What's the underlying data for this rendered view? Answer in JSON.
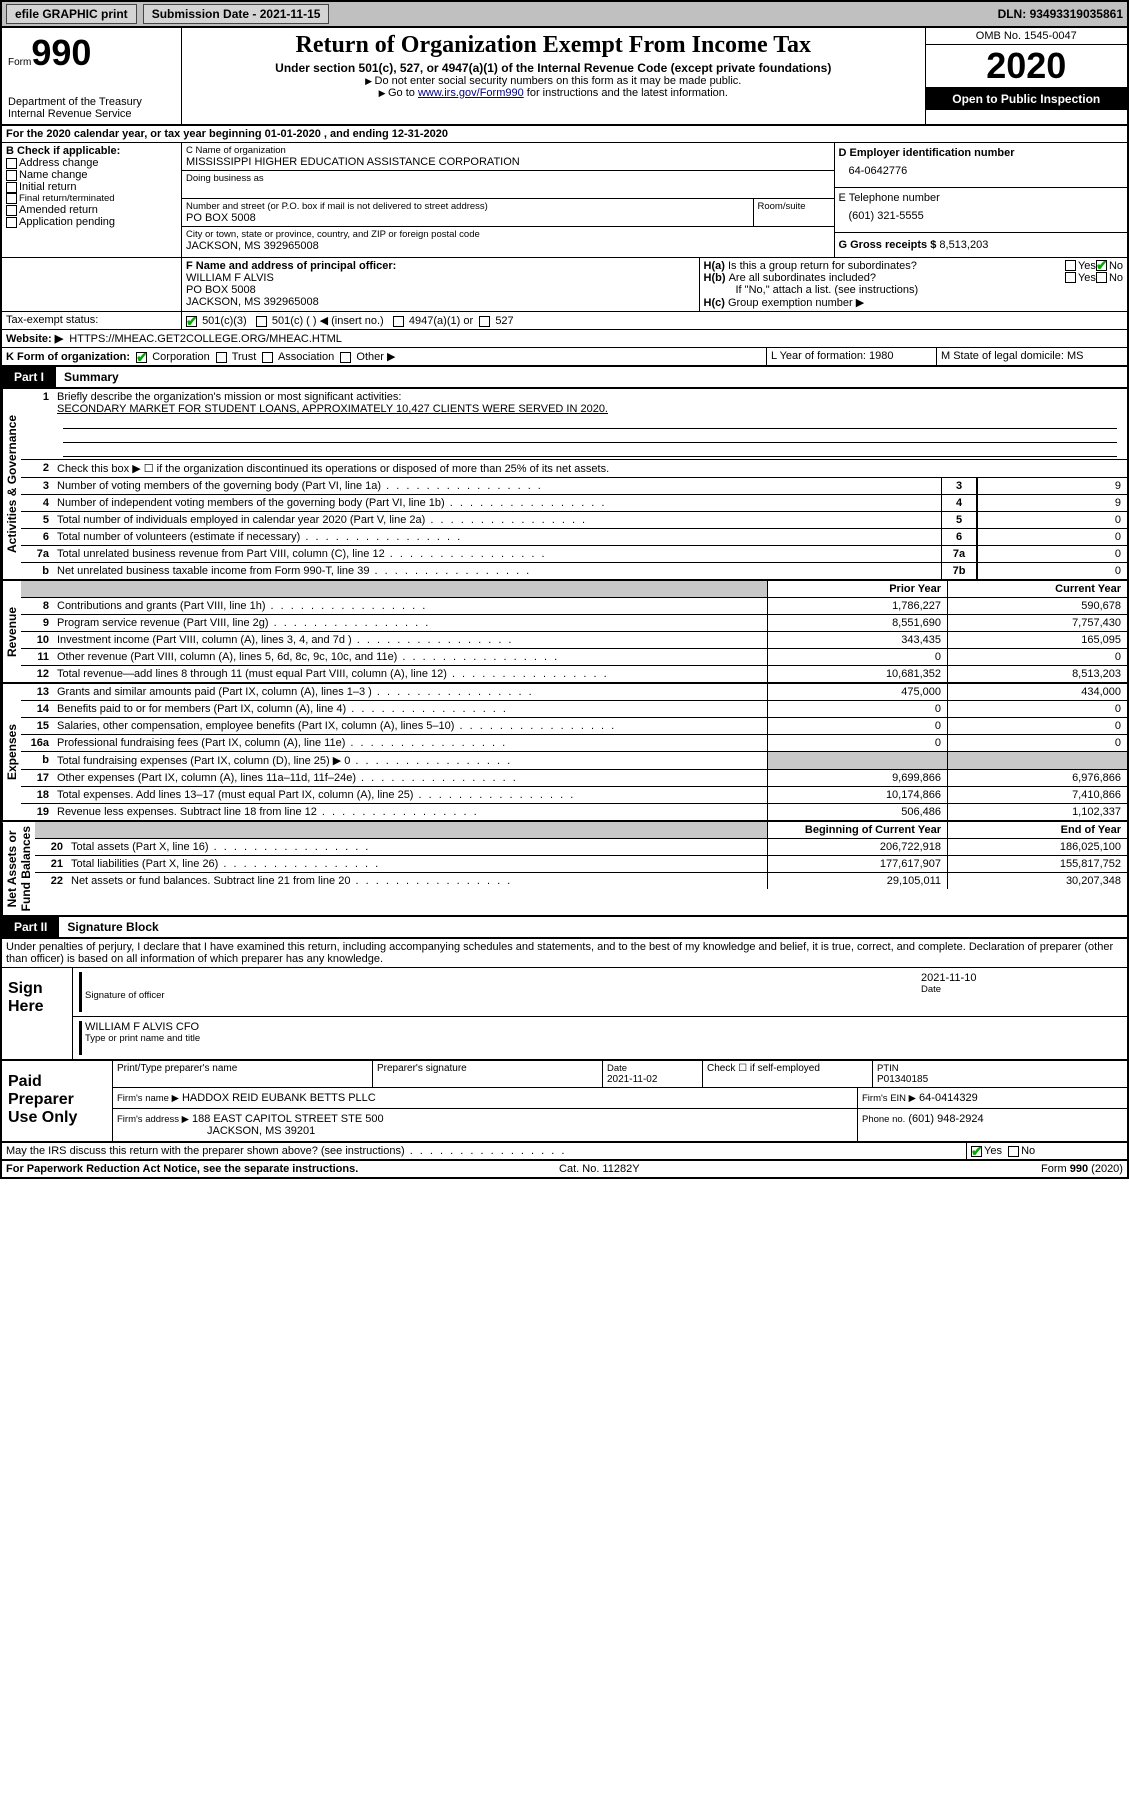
{
  "topbar": {
    "efile": "efile GRAPHIC print",
    "subdate_label": "Submission Date - ",
    "subdate": "2021-11-15",
    "dln_label": "DLN: ",
    "dln": "93493319035861"
  },
  "header": {
    "form_small": "Form",
    "form_big": "990",
    "dept": "Department of the Treasury\nInternal Revenue Service",
    "title": "Return of Organization Exempt From Income Tax",
    "sub1": "Under section 501(c), 527, or 4947(a)(1) of the Internal Revenue Code (except private foundations)",
    "sub2": "Do not enter social security numbers on this form as it may be made public.",
    "sub3_prefix": "Go to ",
    "sub3_link": "www.irs.gov/Form990",
    "sub3_suffix": " for instructions and the latest information.",
    "omb": "OMB No. 1545-0047",
    "year": "2020",
    "inspect": "Open to Public Inspection"
  },
  "lineA": "For the 2020 calendar year, or tax year beginning 01-01-2020    , and ending 12-31-2020",
  "boxB": {
    "label": "B Check if applicable:",
    "opts": [
      "Address change",
      "Name change",
      "Initial return",
      "Final return/terminated",
      "Amended return",
      "Application pending"
    ]
  },
  "boxC": {
    "label": "C Name of organization",
    "name": "MISSISSIPPI HIGHER EDUCATION ASSISTANCE CORPORATION",
    "dba_label": "Doing business as",
    "addr_label": "Number and street (or P.O. box if mail is not delivered to street address)",
    "room_label": "Room/suite",
    "addr": "PO BOX 5008",
    "city_label": "City or town, state or province, country, and ZIP or foreign postal code",
    "city": "JACKSON, MS  392965008"
  },
  "boxD": {
    "label": "D Employer identification number",
    "val": "64-0642776"
  },
  "boxE": {
    "label": "E Telephone number",
    "val": "(601) 321-5555"
  },
  "boxG": {
    "label": "G Gross receipts $",
    "val": "8,513,203"
  },
  "boxF": {
    "label": "F  Name and address of principal officer:",
    "name": "WILLIAM F ALVIS",
    "addr1": "PO BOX 5008",
    "addr2": "JACKSON, MS  392965008"
  },
  "boxH": {
    "a": "Is this a group return for subordinates?",
    "b": "Are all subordinates included?",
    "bnote": "If \"No,\" attach a list. (see instructions)",
    "c": "Group exemption number ▶"
  },
  "lineI": {
    "label": "Tax-exempt status:",
    "opts": [
      "501(c)(3)",
      "501(c) (   ) ◀ (insert no.)",
      "4947(a)(1) or",
      "527"
    ]
  },
  "lineJ": {
    "label": "Website: ▶",
    "val": "HTTPS://MHEAC.GET2COLLEGE.ORG/MHEAC.HTML"
  },
  "lineK": {
    "label": "K Form of organization:",
    "opts": [
      "Corporation",
      "Trust",
      "Association",
      "Other ▶"
    ],
    "L": "L Year of formation: 1980",
    "M": "M State of legal domicile: MS"
  },
  "part1": {
    "num": "Part I",
    "title": "Summary"
  },
  "gov": {
    "sidelabel": "Activities & Governance",
    "q1": "Briefly describe the organization's mission or most significant activities:",
    "q1ans": "SECONDARY MARKET FOR STUDENT LOANS, APPROXIMATELY 10,427 CLIENTS WERE SERVED IN 2020.",
    "q2": "Check this box ▶ ☐  if the organization discontinued its operations or disposed of more than 25% of its net assets.",
    "rows": [
      {
        "n": "3",
        "d": "Number of voting members of the governing body (Part VI, line 1a)",
        "b": "3",
        "v": "9"
      },
      {
        "n": "4",
        "d": "Number of independent voting members of the governing body (Part VI, line 1b)",
        "b": "4",
        "v": "9"
      },
      {
        "n": "5",
        "d": "Total number of individuals employed in calendar year 2020 (Part V, line 2a)",
        "b": "5",
        "v": "0"
      },
      {
        "n": "6",
        "d": "Total number of volunteers (estimate if necessary)",
        "b": "6",
        "v": "0"
      },
      {
        "n": "7a",
        "d": "Total unrelated business revenue from Part VIII, column (C), line 12",
        "b": "7a",
        "v": "0"
      },
      {
        "n": "b",
        "d": "Net unrelated business taxable income from Form 990-T, line 39",
        "b": "7b",
        "v": "0"
      }
    ]
  },
  "twocol": {
    "head_prior": "Prior Year",
    "head_curr": "Current Year",
    "rev_label": "Revenue",
    "rev": [
      {
        "n": "8",
        "d": "Contributions and grants (Part VIII, line 1h)",
        "p": "1,786,227",
        "c": "590,678"
      },
      {
        "n": "9",
        "d": "Program service revenue (Part VIII, line 2g)",
        "p": "8,551,690",
        "c": "7,757,430"
      },
      {
        "n": "10",
        "d": "Investment income (Part VIII, column (A), lines 3, 4, and 7d )",
        "p": "343,435",
        "c": "165,095"
      },
      {
        "n": "11",
        "d": "Other revenue (Part VIII, column (A), lines 5, 6d, 8c, 9c, 10c, and 11e)",
        "p": "0",
        "c": "0"
      },
      {
        "n": "12",
        "d": "Total revenue—add lines 8 through 11 (must equal Part VIII, column (A), line 12)",
        "p": "10,681,352",
        "c": "8,513,203"
      }
    ],
    "exp_label": "Expenses",
    "exp": [
      {
        "n": "13",
        "d": "Grants and similar amounts paid (Part IX, column (A), lines 1–3 )",
        "p": "475,000",
        "c": "434,000"
      },
      {
        "n": "14",
        "d": "Benefits paid to or for members (Part IX, column (A), line 4)",
        "p": "0",
        "c": "0"
      },
      {
        "n": "15",
        "d": "Salaries, other compensation, employee benefits (Part IX, column (A), lines 5–10)",
        "p": "0",
        "c": "0"
      },
      {
        "n": "16a",
        "d": "Professional fundraising fees (Part IX, column (A), line 11e)",
        "p": "0",
        "c": "0"
      },
      {
        "n": "b",
        "d": "Total fundraising expenses (Part IX, column (D), line 25) ▶ 0",
        "p": "",
        "c": "",
        "shade": true
      },
      {
        "n": "17",
        "d": "Other expenses (Part IX, column (A), lines 11a–11d, 11f–24e)",
        "p": "9,699,866",
        "c": "6,976,866"
      },
      {
        "n": "18",
        "d": "Total expenses. Add lines 13–17 (must equal Part IX, column (A), line 25)",
        "p": "10,174,866",
        "c": "7,410,866"
      },
      {
        "n": "19",
        "d": "Revenue less expenses. Subtract line 18 from line 12",
        "p": "506,486",
        "c": "1,102,337"
      }
    ],
    "na_label": "Net Assets or\nFund Balances",
    "na_head_b": "Beginning of Current Year",
    "na_head_e": "End of Year",
    "na": [
      {
        "n": "20",
        "d": "Total assets (Part X, line 16)",
        "p": "206,722,918",
        "c": "186,025,100"
      },
      {
        "n": "21",
        "d": "Total liabilities (Part X, line 26)",
        "p": "177,617,907",
        "c": "155,817,752"
      },
      {
        "n": "22",
        "d": "Net assets or fund balances. Subtract line 21 from line 20",
        "p": "29,105,011",
        "c": "30,207,348"
      }
    ]
  },
  "part2": {
    "num": "Part II",
    "title": "Signature Block"
  },
  "perjury": "Under penalties of perjury, I declare that I have examined this return, including accompanying schedules and statements, and to the best of my knowledge and belief, it is true, correct, and complete. Declaration of preparer (other than officer) is based on all information of which preparer has any knowledge.",
  "sign": {
    "left": "Sign Here",
    "sigoff": "Signature of officer",
    "date": "2021-11-10",
    "date_label": "Date",
    "name": "WILLIAM F ALVIS  CFO",
    "name_label": "Type or print name and title"
  },
  "paid": {
    "left": "Paid Preparer Use Only",
    "h1": "Print/Type preparer's name",
    "h2": "Preparer's signature",
    "h3_l": "Date",
    "h3": "2021-11-02",
    "h4": "Check ☐  if self-employed",
    "h5_l": "PTIN",
    "h5": "P01340185",
    "firm_l": "Firm's name    ▶",
    "firm": "HADDOX REID EUBANK BETTS PLLC",
    "ein_l": "Firm's EIN ▶",
    "ein": "64-0414329",
    "addr_l": "Firm's address ▶",
    "addr1": "188 EAST CAPITOL STREET STE 500",
    "addr2": "JACKSON, MS  39201",
    "phone_l": "Phone no.",
    "phone": "(601) 948-2924"
  },
  "discuss": "May the IRS discuss this return with the preparer shown above? (see instructions)",
  "footer": {
    "l": "For Paperwork Reduction Act Notice, see the separate instructions.",
    "m": "Cat. No. 11282Y",
    "r": "Form 990 (2020)"
  },
  "colors": {
    "bar": "#c0c0c0",
    "link": "#000080",
    "check": "#00a000"
  }
}
